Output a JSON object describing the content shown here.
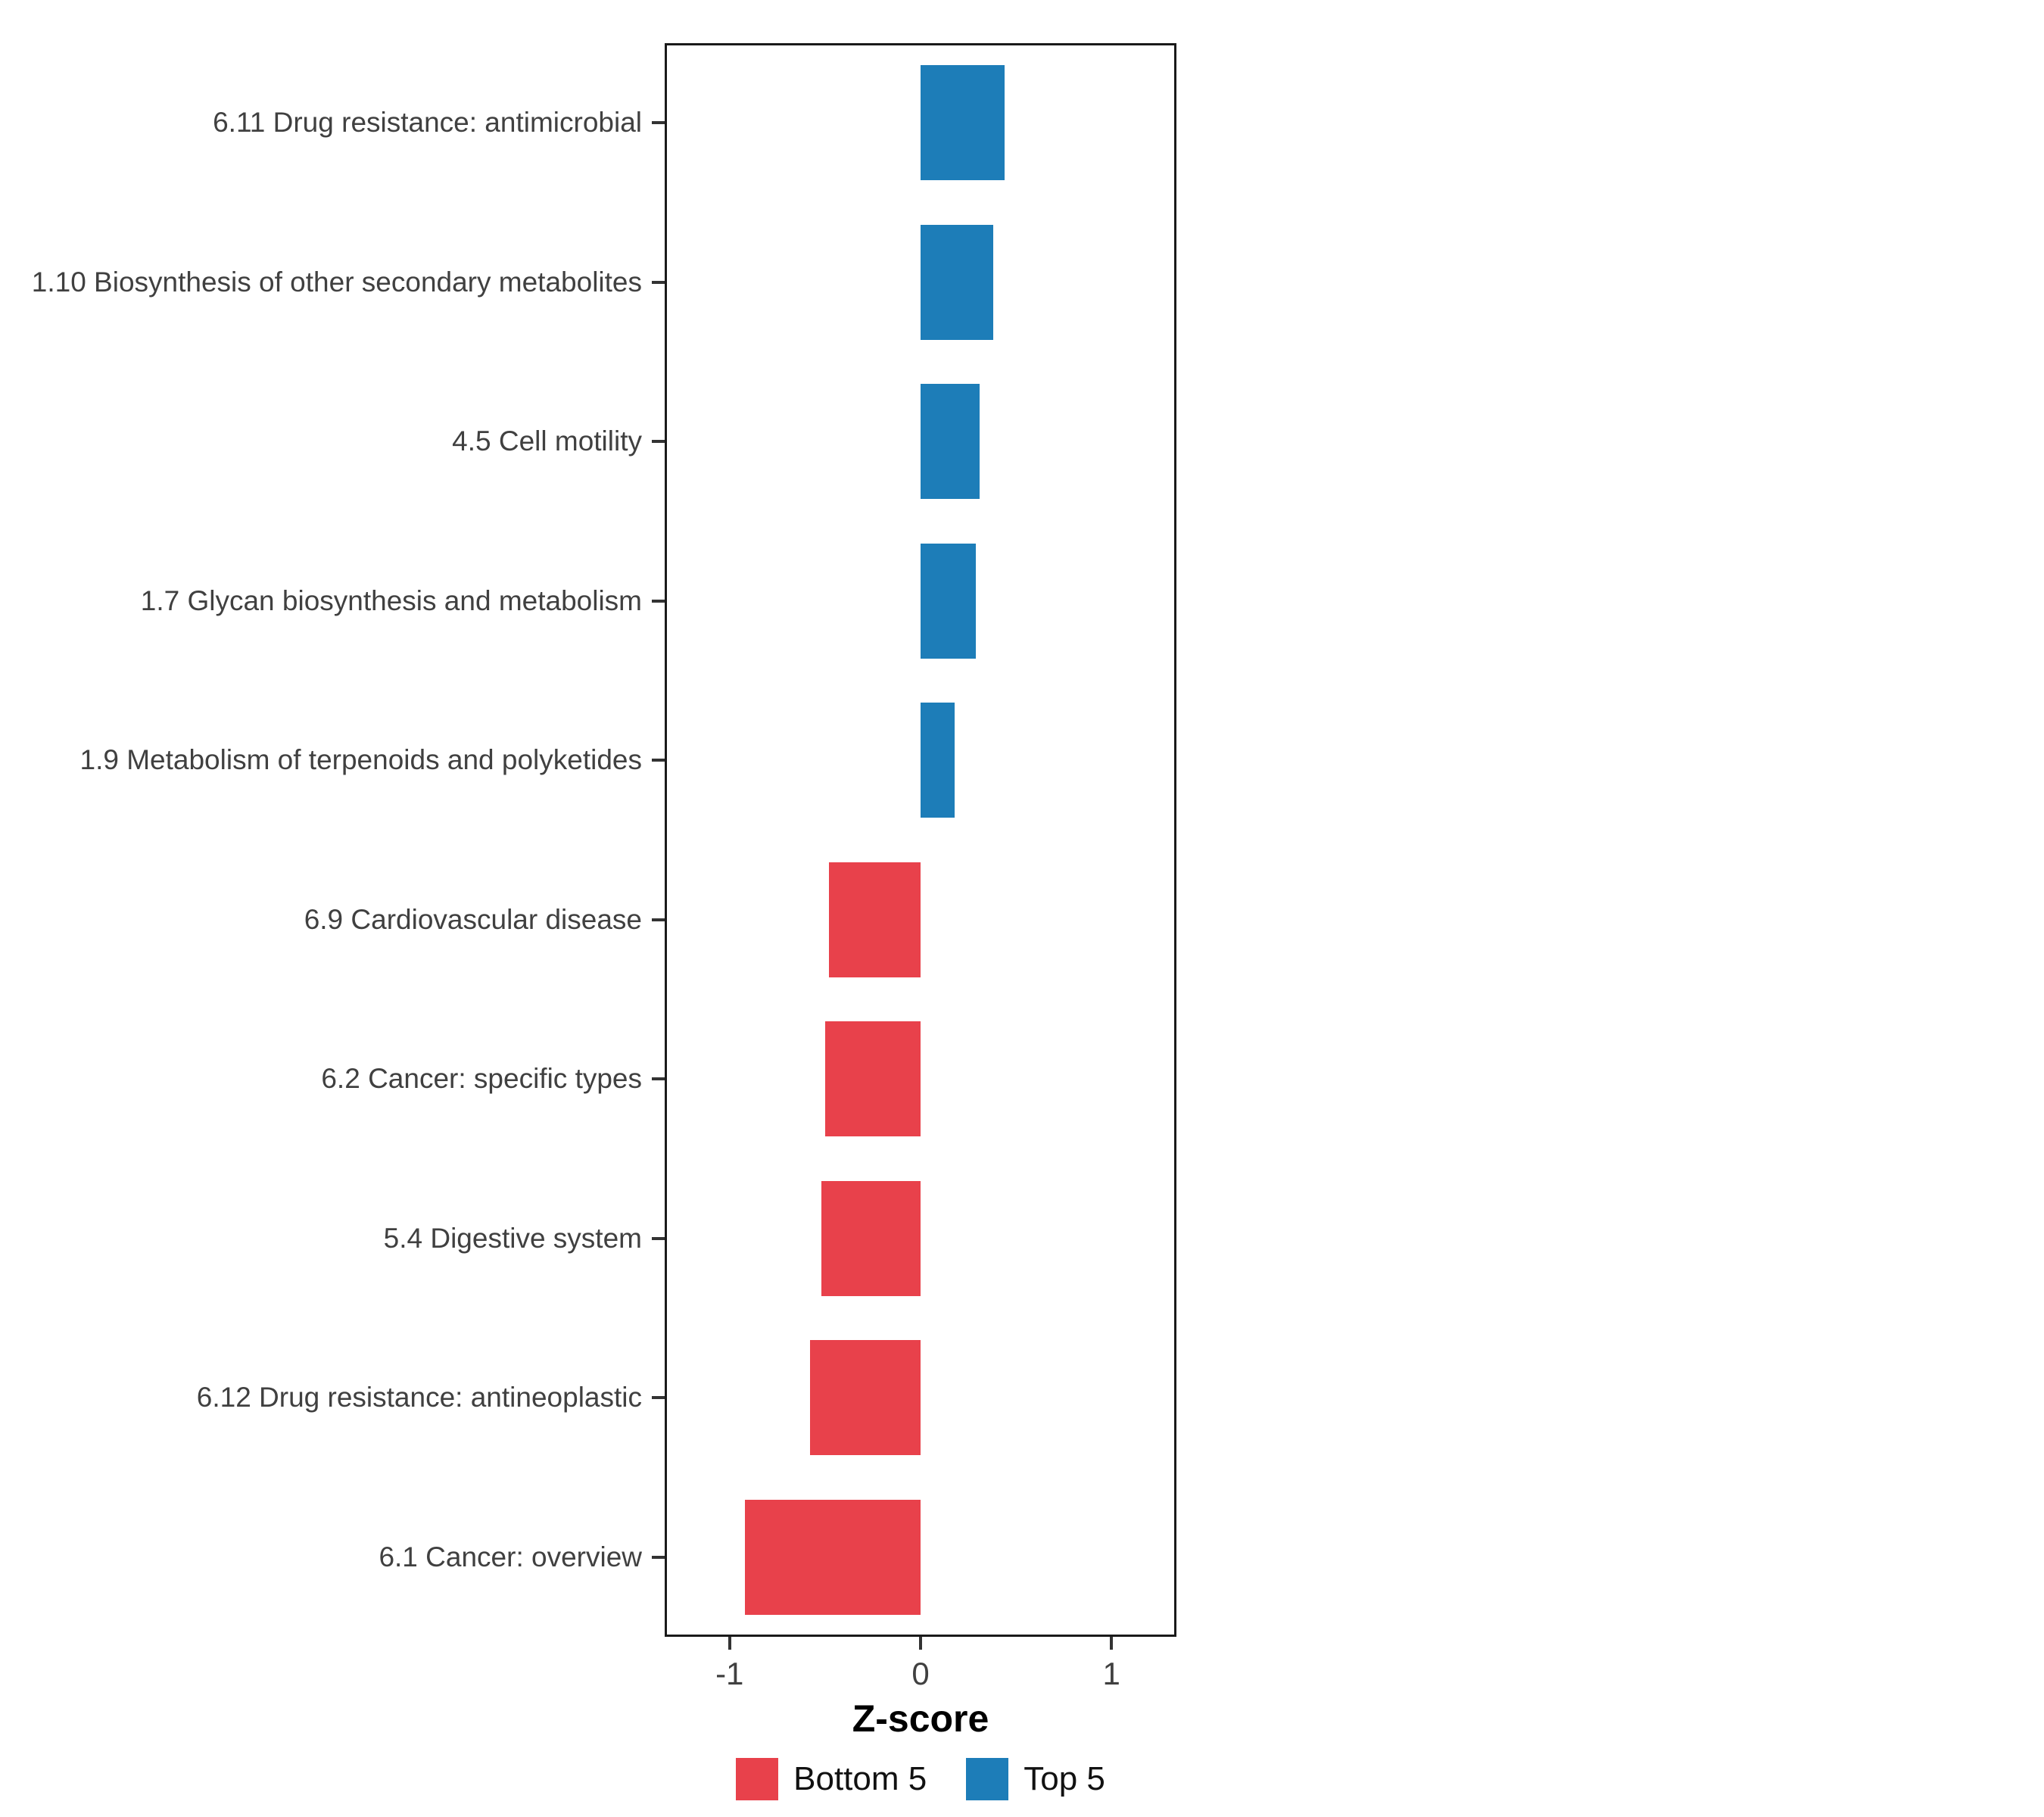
{
  "figure": {
    "background": "#FFFFFF",
    "panel_border_color": "#1A1A1A",
    "text_color": "#404040"
  },
  "chart_data": {
    "type": "bar",
    "orientation": "horizontal",
    "title": "",
    "xlabel": "Z-score",
    "ylabel": "",
    "xlim": [
      -1.34,
      1.34
    ],
    "grid": false,
    "xticks": [
      {
        "value": -1,
        "label": "-1"
      },
      {
        "value": 0,
        "label": "0"
      },
      {
        "value": 1,
        "label": "1"
      }
    ],
    "bars": [
      {
        "category": "6.11 Drug resistance: antimicrobial",
        "value": 0.44,
        "group": "Top 5",
        "color": "#1D7DB8"
      },
      {
        "category": "1.10 Biosynthesis of other secondary metabolites",
        "value": 0.38,
        "group": "Top 5",
        "color": "#1D7DB8"
      },
      {
        "category": "4.5 Cell motility",
        "value": 0.31,
        "group": "Top 5",
        "color": "#1D7DB8"
      },
      {
        "category": "1.7 Glycan biosynthesis and metabolism",
        "value": 0.29,
        "group": "Top 5",
        "color": "#1D7DB8"
      },
      {
        "category": "1.9 Metabolism of terpenoids and polyketides",
        "value": 0.18,
        "group": "Top 5",
        "color": "#1D7DB8"
      },
      {
        "category": "6.9 Cardiovascular disease",
        "value": -0.48,
        "group": "Bottom 5",
        "color": "#E8414B"
      },
      {
        "category": "6.2 Cancer: specific types",
        "value": -0.5,
        "group": "Bottom 5",
        "color": "#E8414B"
      },
      {
        "category": "5.4 Digestive system",
        "value": -0.52,
        "group": "Bottom 5",
        "color": "#E8414B"
      },
      {
        "category": "6.12 Drug resistance: antineoplastic",
        "value": -0.58,
        "group": "Bottom 5",
        "color": "#E8414B"
      },
      {
        "category": "6.1 Cancer: overview",
        "value": -0.92,
        "group": "Bottom 5",
        "color": "#E8414B"
      }
    ],
    "legend": {
      "position": "bottom",
      "entries": [
        {
          "label": "Bottom 5",
          "color": "#E8414B"
        },
        {
          "label": "Top 5",
          "color": "#1D7DB8"
        }
      ]
    }
  }
}
